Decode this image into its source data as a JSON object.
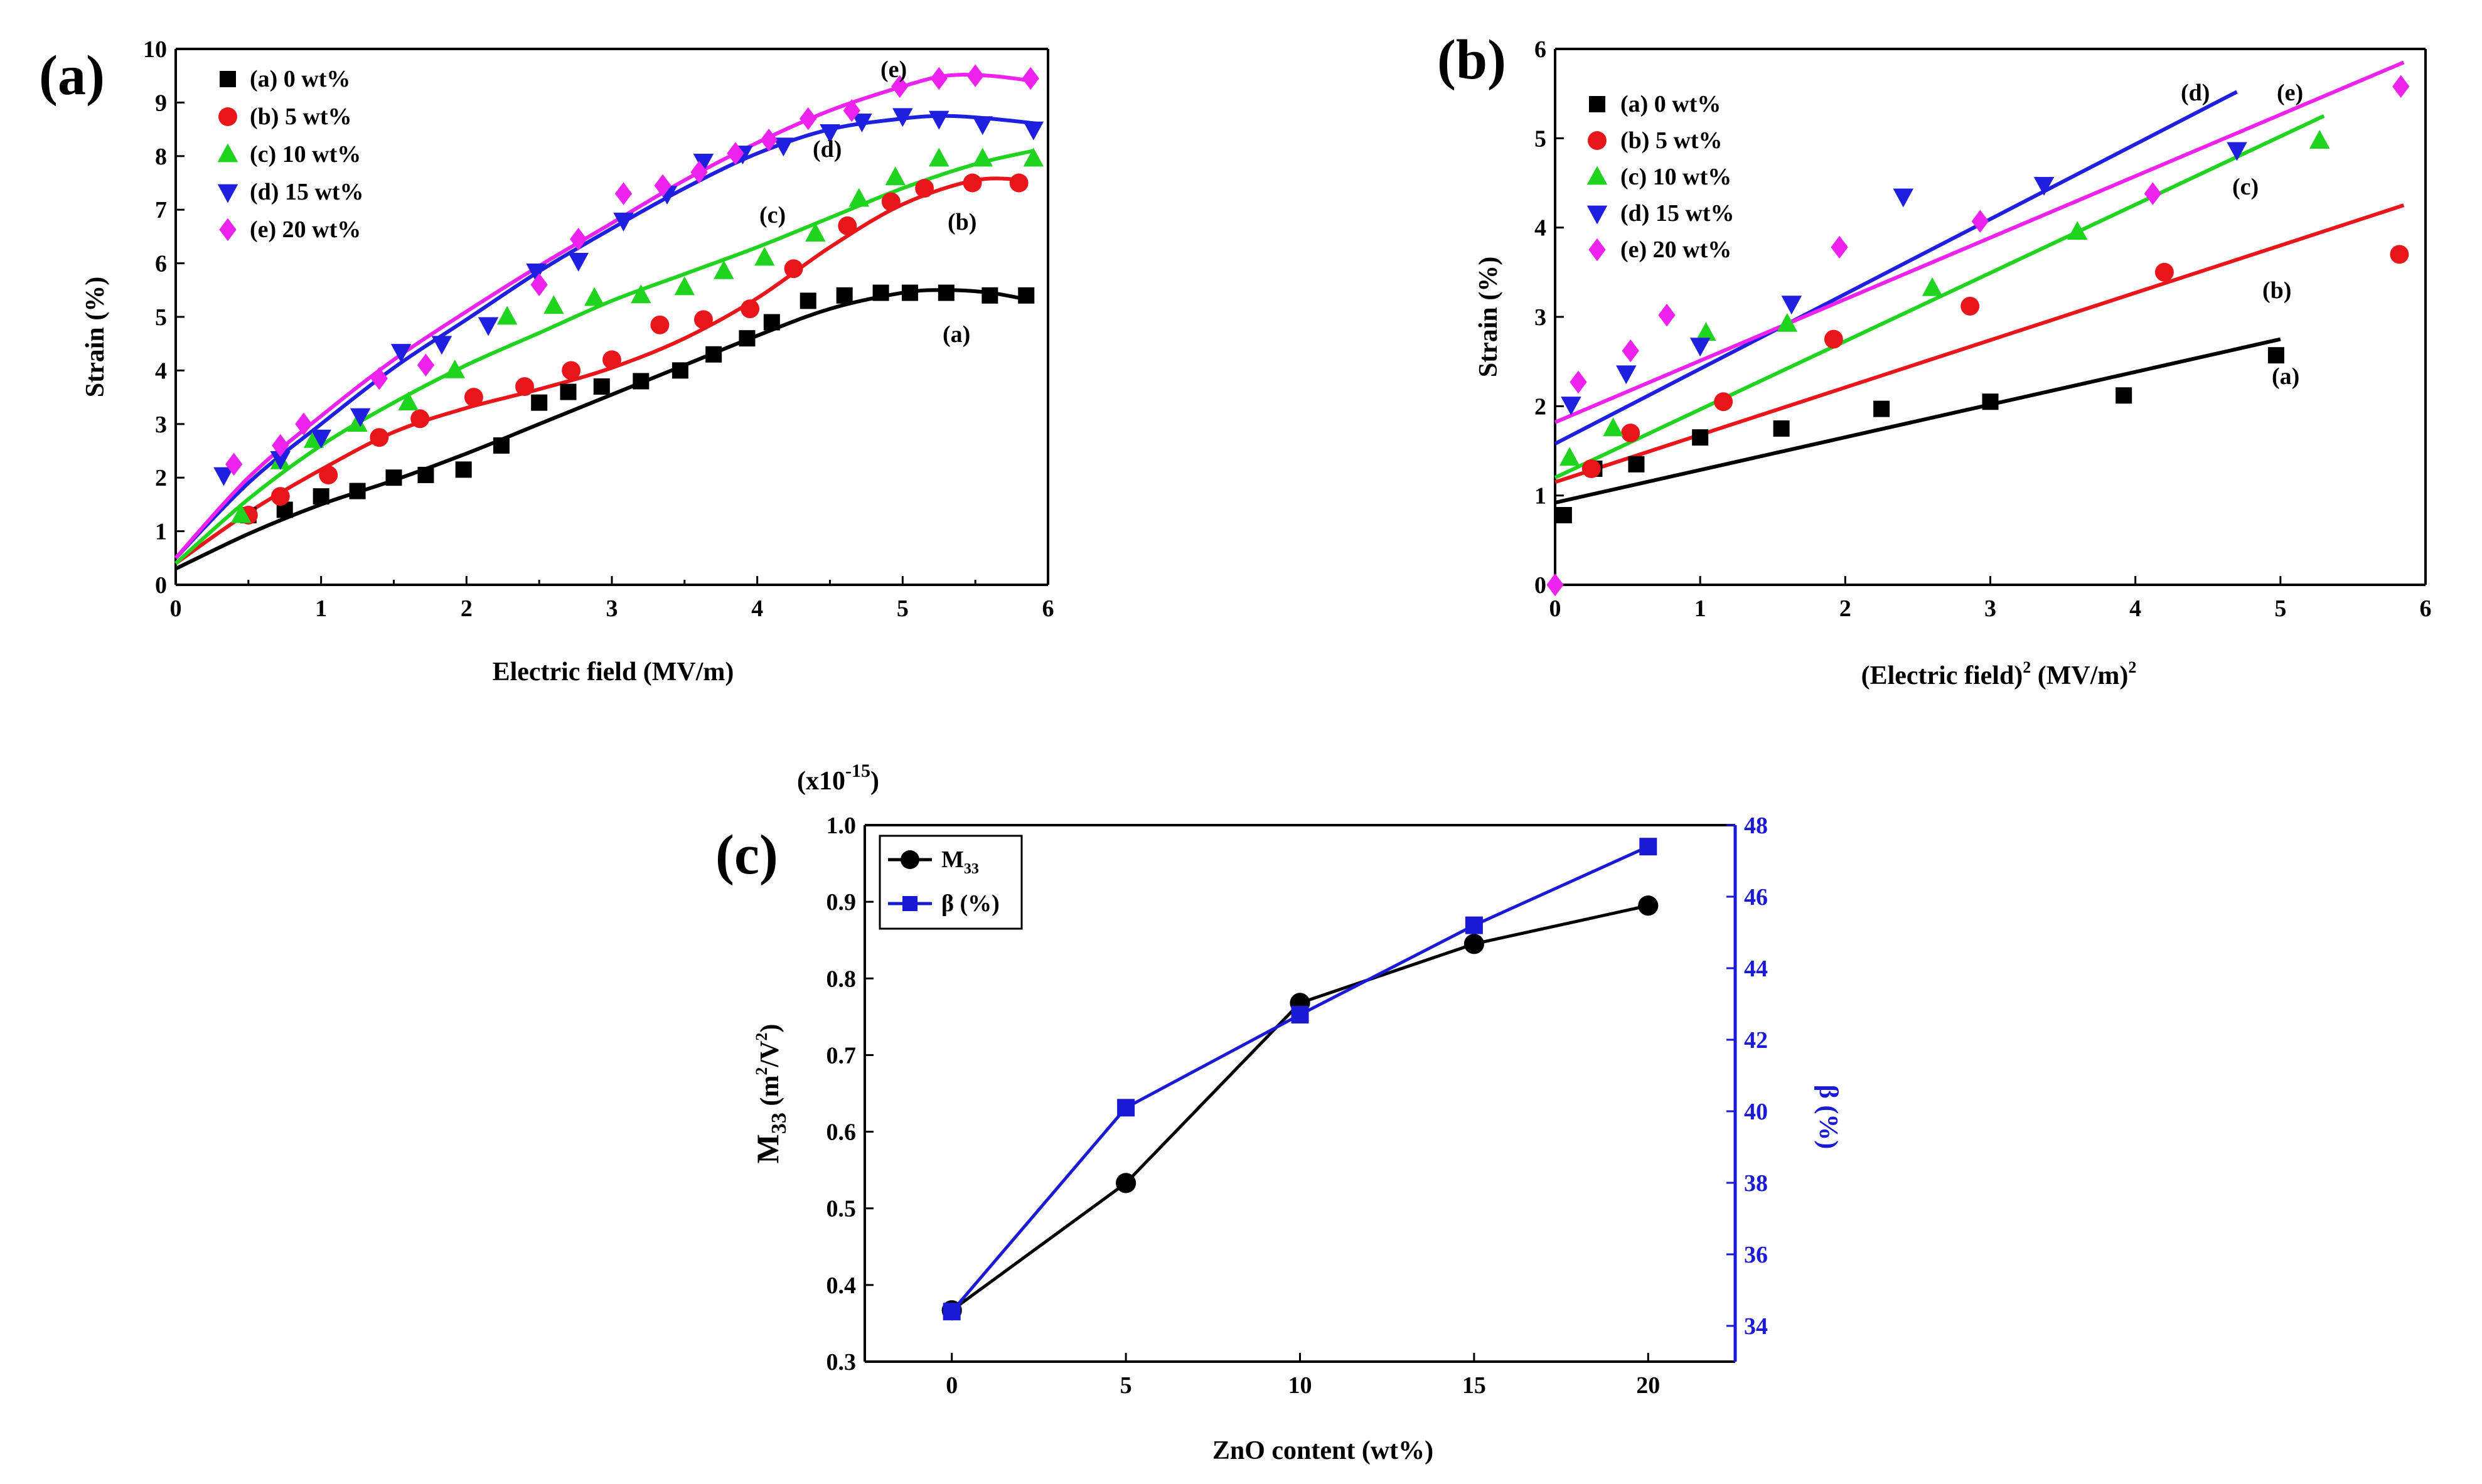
{
  "colors": {
    "a": "#000000",
    "b": "#e8161b",
    "c": "#1fd31f",
    "d": "#1f1fe0",
    "e": "#ee22ee",
    "m33": "#000000",
    "beta": "#1a1ad6",
    "beta_axis": "#1a1ad6"
  },
  "chart_data": [
    {
      "panel_label": "(a)",
      "type": "scatter",
      "xlabel": "Electric field (MV/m)",
      "ylabel": "Strain (%)",
      "xlim": [
        0,
        6
      ],
      "ylim": [
        0,
        10
      ],
      "xticks": [
        "0",
        "1",
        "2",
        "3",
        "4",
        "5",
        "6"
      ],
      "yticks": [
        "0",
        "1",
        "2",
        "3",
        "4",
        "5",
        "6",
        "7",
        "8",
        "9",
        "10"
      ],
      "legend_position": "top-left",
      "series": [
        {
          "name": "(a) 0 wt%",
          "label": "(a)",
          "marker": "square",
          "x": [
            0.5,
            0.75,
            1.0,
            1.25,
            1.5,
            1.72,
            1.98,
            2.24,
            2.5,
            2.7,
            2.93,
            3.2,
            3.47,
            3.7,
            3.93,
            4.1,
            4.35,
            4.6,
            4.85,
            5.05,
            5.3,
            5.6,
            5.85
          ],
          "y": [
            1.3,
            1.4,
            1.65,
            1.75,
            2.0,
            2.05,
            2.15,
            2.6,
            3.4,
            3.6,
            3.7,
            3.8,
            4.0,
            4.3,
            4.6,
            4.9,
            5.3,
            5.4,
            5.45,
            5.45,
            5.45,
            5.4,
            5.4
          ],
          "fit_x": [
            0,
            0.5,
            1,
            1.5,
            2,
            2.5,
            3,
            3.5,
            4,
            4.5,
            5,
            5.3,
            5.6,
            5.9
          ],
          "fit_y": [
            0.3,
            0.95,
            1.5,
            1.95,
            2.45,
            3.0,
            3.55,
            4.1,
            4.65,
            5.15,
            5.45,
            5.5,
            5.45,
            5.3
          ]
        },
        {
          "name": "(b) 5 wt%",
          "label": "(b)",
          "marker": "circle",
          "x": [
            0.5,
            0.72,
            1.05,
            1.4,
            1.68,
            2.05,
            2.4,
            2.72,
            3.0,
            3.33,
            3.63,
            3.95,
            4.25,
            4.62,
            4.92,
            5.15,
            5.48,
            5.8
          ],
          "y": [
            1.3,
            1.65,
            2.05,
            2.75,
            3.1,
            3.5,
            3.7,
            4.0,
            4.2,
            4.85,
            4.95,
            5.15,
            5.9,
            6.7,
            7.15,
            7.4,
            7.5,
            7.5
          ],
          "fit_x": [
            0,
            0.5,
            1,
            1.5,
            2,
            2.5,
            3,
            3.5,
            4,
            4.5,
            5,
            5.5,
            5.85
          ],
          "fit_y": [
            0.4,
            1.35,
            2.15,
            2.85,
            3.3,
            3.65,
            4.05,
            4.6,
            5.35,
            6.3,
            7.1,
            7.55,
            7.55
          ]
        },
        {
          "name": "(c) 10 wt%",
          "label": "(c)",
          "marker": "triangle-up",
          "x": [
            0.45,
            0.72,
            0.95,
            1.25,
            1.6,
            1.92,
            2.28,
            2.6,
            2.88,
            3.2,
            3.5,
            3.77,
            4.05,
            4.4,
            4.7,
            4.95,
            5.25,
            5.55,
            5.9
          ],
          "y": [
            1.3,
            2.3,
            2.7,
            3.0,
            3.4,
            4.0,
            5.0,
            5.2,
            5.35,
            5.4,
            5.55,
            5.85,
            6.1,
            6.55,
            7.2,
            7.6,
            7.95,
            7.95,
            7.95
          ],
          "fit_x": [
            0,
            0.5,
            1,
            1.5,
            2,
            2.5,
            3,
            3.5,
            4,
            4.5,
            5,
            5.5,
            5.9
          ],
          "fit_y": [
            0.4,
            1.6,
            2.6,
            3.4,
            4.1,
            4.7,
            5.3,
            5.8,
            6.3,
            6.85,
            7.4,
            7.85,
            8.1
          ]
        },
        {
          "name": "(d) 15 wt%",
          "label": "(d)",
          "marker": "triangle-down",
          "x": [
            0.33,
            0.72,
            1.0,
            1.27,
            1.55,
            1.83,
            2.15,
            2.48,
            2.77,
            3.08,
            3.38,
            3.63,
            3.9,
            4.18,
            4.5,
            4.72,
            5.0,
            5.25,
            5.55,
            5.9
          ],
          "y": [
            2.05,
            2.35,
            2.75,
            3.15,
            4.35,
            4.5,
            4.85,
            5.85,
            6.05,
            6.8,
            7.3,
            7.9,
            8.05,
            8.2,
            8.45,
            8.65,
            8.75,
            8.7,
            8.6,
            8.5
          ],
          "fit_x": [
            0,
            0.5,
            1,
            1.5,
            2,
            2.5,
            3,
            3.5,
            4,
            4.5,
            5,
            5.3,
            5.6,
            5.95
          ],
          "fit_y": [
            0.5,
            1.9,
            3.0,
            4.05,
            4.95,
            5.85,
            6.65,
            7.4,
            8.05,
            8.5,
            8.7,
            8.75,
            8.7,
            8.6
          ]
        },
        {
          "name": "(e) 20 wt%",
          "label": "(e)",
          "marker": "diamond",
          "x": [
            0.4,
            0.72,
            0.88,
            1.4,
            1.72,
            2.5,
            2.77,
            3.08,
            3.35,
            3.6,
            3.85,
            4.08,
            4.35,
            4.65,
            4.98,
            5.25,
            5.5,
            5.88
          ],
          "y": [
            2.25,
            2.6,
            3.0,
            3.85,
            4.1,
            5.6,
            6.45,
            7.3,
            7.45,
            7.7,
            8.05,
            8.3,
            8.7,
            8.85,
            9.3,
            9.45,
            9.5,
            9.45
          ],
          "fit_x": [
            0,
            0.5,
            1,
            1.5,
            2,
            2.5,
            3,
            3.5,
            4,
            4.5,
            5,
            5.3,
            5.6,
            5.9
          ],
          "fit_y": [
            0.5,
            2.0,
            3.15,
            4.2,
            5.1,
            5.95,
            6.75,
            7.55,
            8.25,
            8.85,
            9.3,
            9.5,
            9.5,
            9.4
          ]
        }
      ]
    },
    {
      "panel_label": "(b)",
      "type": "scatter",
      "xlabel_main": "(Electric field)",
      "xlabel_exp1": "2",
      "xlabel_unit": " (MV/m)",
      "xlabel_exp2": "2",
      "ylabel": "Strain (%)",
      "xlim": [
        0,
        6
      ],
      "ylim": [
        0,
        6
      ],
      "xticks": [
        "0",
        "1",
        "2",
        "3",
        "4",
        "5",
        "6"
      ],
      "yticks": [
        "0",
        "1",
        "2",
        "3",
        "4",
        "5",
        "6"
      ],
      "legend_position": "top-left",
      "series": [
        {
          "name": "(a) 0 wt%",
          "label": "(a)",
          "marker": "square",
          "x": [
            0.06,
            0.27,
            0.56,
            1.0,
            1.56,
            2.25,
            3.0,
            3.92,
            4.97
          ],
          "y": [
            0.78,
            1.3,
            1.35,
            1.65,
            1.75,
            1.97,
            2.05,
            2.12,
            2.57
          ],
          "line": [
            0,
            0.92,
            5.0,
            2.75
          ]
        },
        {
          "name": "(b) 5 wt%",
          "label": "(b)",
          "marker": "circle",
          "x": [
            0.25,
            0.52,
            1.16,
            1.92,
            2.86,
            4.2,
            5.82
          ],
          "y": [
            1.3,
            1.7,
            2.05,
            2.75,
            3.12,
            3.5,
            3.7
          ],
          "line": [
            0,
            1.15,
            5.85,
            4.25
          ]
        },
        {
          "name": "(c) 10 wt%",
          "label": "(c)",
          "marker": "triangle-up",
          "x": [
            0.1,
            0.4,
            1.04,
            1.6,
            2.6,
            3.6,
            5.27
          ],
          "y": [
            1.42,
            1.75,
            2.82,
            2.92,
            3.32,
            3.95,
            4.97
          ],
          "line": [
            0,
            1.2,
            5.3,
            5.25
          ]
        },
        {
          "name": "(d) 15 wt%",
          "label": "(d)",
          "marker": "triangle-down",
          "x": [
            0.11,
            0.49,
            1.0,
            1.63,
            2.4,
            3.37,
            4.7
          ],
          "y": [
            2.02,
            2.37,
            2.68,
            3.15,
            4.35,
            4.48,
            4.87
          ],
          "line": [
            0,
            1.58,
            4.7,
            5.52
          ]
        },
        {
          "name": "(e) 20 wt%",
          "label": "(e)",
          "marker": "diamond",
          "x": [
            0.0,
            0.16,
            0.52,
            0.77,
            1.96,
            2.93,
            4.12,
            5.83
          ],
          "y": [
            0.0,
            2.27,
            2.62,
            3.02,
            3.78,
            4.07,
            4.38,
            5.58
          ],
          "line": [
            0,
            1.82,
            5.85,
            5.85
          ]
        }
      ]
    },
    {
      "panel_label": "(c)",
      "type": "line",
      "xlabel": "ZnO content (wt%)",
      "ylabel_main": "M",
      "ylabel_sub": "33",
      "ylabel_unit_open": " (m",
      "ylabel_unit_exp1": "2",
      "ylabel_unit_mid": "/V",
      "ylabel_unit_exp2": "2",
      "ylabel_unit_close": ")",
      "y_scale_note": "(x10",
      "y_scale_exp": "-15",
      "y_scale_close": ")",
      "y2label": "β (%)",
      "xlim": [
        -2.5,
        22.5
      ],
      "ylim": [
        0.3,
        1.0
      ],
      "y2lim": [
        33,
        48
      ],
      "xticks": [
        "0",
        "5",
        "10",
        "15",
        "20"
      ],
      "yticks": [
        "0.3",
        "0.4",
        "0.5",
        "0.6",
        "0.7",
        "0.8",
        "0.9",
        "1.0"
      ],
      "y2ticks": [
        "34",
        "36",
        "38",
        "40",
        "42",
        "44",
        "46",
        "48"
      ],
      "legend_position": "top-left",
      "x": [
        0,
        5,
        10,
        15,
        20
      ],
      "series": [
        {
          "name_main": "M",
          "name_sub": "33",
          "axis": "left",
          "marker": "circle",
          "values": [
            0.367,
            0.533,
            0.768,
            0.845,
            0.895
          ]
        },
        {
          "name": "β (%)",
          "axis": "right",
          "marker": "square",
          "values": [
            34.4,
            40.1,
            42.7,
            45.2,
            47.4
          ]
        }
      ]
    }
  ]
}
